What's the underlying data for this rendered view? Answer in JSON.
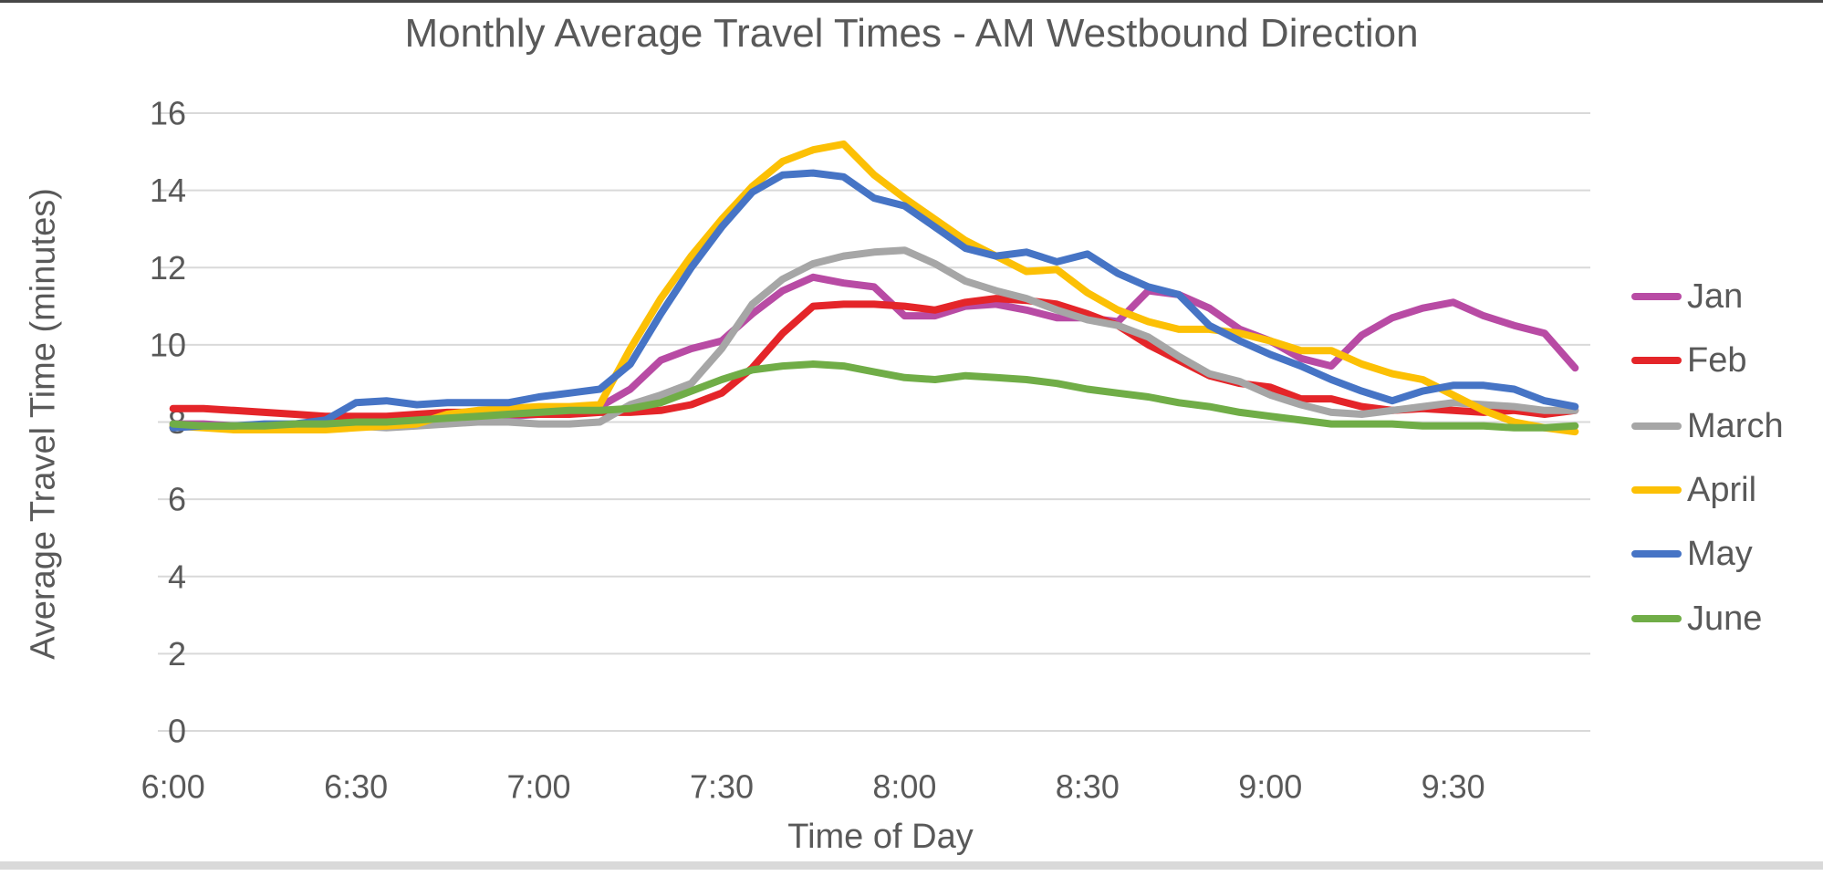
{
  "title": "Monthly Average Travel Times - AM Westbound Direction",
  "axes": {
    "y_title": "Average Travel Time (minutes)",
    "x_title": "Time of Day",
    "y_ticks": [
      0,
      2,
      4,
      6,
      8,
      10,
      12,
      14,
      16
    ],
    "x_ticks": [
      "6:00",
      "6:30",
      "7:00",
      "7:30",
      "8:00",
      "8:30",
      "9:00",
      "9:30"
    ],
    "text_color": "#595959",
    "gridline_color": "#d9d9d9"
  },
  "window": {
    "top_border_color": "#474747",
    "bottom_bar_color": "#d9d9d9",
    "background_color": "#ffffff"
  },
  "legend": {
    "items": [
      {
        "label": "Jan",
        "color": "#b84ba4"
      },
      {
        "label": "Feb",
        "color": "#e42529"
      },
      {
        "label": "March",
        "color": "#a6a6a6"
      },
      {
        "label": "April",
        "color": "#fcc005"
      },
      {
        "label": "May",
        "color": "#4674c5"
      },
      {
        "label": "June",
        "color": "#70ad47"
      }
    ]
  },
  "chart_data": {
    "type": "line",
    "title": "Monthly Average Travel Times - AM Westbound Direction",
    "xlabel": "Time of Day",
    "ylabel": "Average Travel Time (minutes)",
    "ylim": [
      0,
      16
    ],
    "y_tick_step": 2,
    "grid": "horizontal",
    "legend_position": "right",
    "x_interval_minutes": 5,
    "x": [
      "6:00",
      "6:05",
      "6:10",
      "6:15",
      "6:20",
      "6:25",
      "6:30",
      "6:35",
      "6:40",
      "6:45",
      "6:50",
      "6:55",
      "7:00",
      "7:05",
      "7:10",
      "7:15",
      "7:20",
      "7:25",
      "7:30",
      "7:35",
      "7:40",
      "7:45",
      "7:50",
      "7:55",
      "8:00",
      "8:05",
      "8:10",
      "8:15",
      "8:20",
      "8:25",
      "8:30",
      "8:35",
      "8:40",
      "8:45",
      "8:50",
      "8:55",
      "9:00",
      "9:05",
      "9:10",
      "9:15",
      "9:20",
      "9:25",
      "9:30",
      "9:35",
      "9:40",
      "9:45",
      "9:50"
    ],
    "series": [
      {
        "name": "Jan",
        "color": "#b84ba4",
        "values": [
          7.95,
          7.95,
          7.9,
          7.9,
          7.95,
          8.0,
          8.0,
          8.05,
          8.1,
          8.1,
          8.15,
          8.15,
          8.2,
          8.25,
          8.4,
          8.85,
          9.6,
          9.9,
          10.1,
          10.8,
          11.4,
          11.75,
          11.6,
          11.5,
          10.75,
          10.75,
          11.0,
          11.05,
          10.9,
          10.7,
          10.7,
          10.6,
          11.4,
          11.3,
          10.95,
          10.4,
          10.1,
          9.65,
          9.45,
          10.25,
          10.7,
          10.95,
          11.1,
          10.75,
          10.5,
          10.3,
          9.4
        ]
      },
      {
        "name": "Feb",
        "color": "#e42529",
        "values": [
          8.35,
          8.35,
          8.3,
          8.25,
          8.2,
          8.15,
          8.15,
          8.15,
          8.2,
          8.25,
          8.25,
          8.2,
          8.2,
          8.2,
          8.25,
          8.25,
          8.3,
          8.45,
          8.75,
          9.4,
          10.3,
          11.0,
          11.05,
          11.05,
          11.0,
          10.9,
          11.1,
          11.2,
          11.15,
          11.05,
          10.8,
          10.5,
          10.0,
          9.6,
          9.2,
          9.0,
          8.9,
          8.6,
          8.6,
          8.4,
          8.3,
          8.35,
          8.3,
          8.25,
          8.3,
          8.2,
          8.3
        ]
      },
      {
        "name": "March",
        "color": "#a6a6a6",
        "values": [
          7.9,
          7.9,
          7.85,
          7.85,
          7.9,
          7.9,
          7.9,
          7.85,
          7.9,
          7.95,
          8.0,
          8.0,
          7.95,
          7.95,
          8.0,
          8.45,
          8.7,
          9.0,
          9.9,
          11.05,
          11.7,
          12.1,
          12.3,
          12.4,
          12.45,
          12.1,
          11.65,
          11.4,
          11.2,
          10.9,
          10.65,
          10.5,
          10.2,
          9.7,
          9.25,
          9.05,
          8.7,
          8.45,
          8.25,
          8.2,
          8.3,
          8.4,
          8.5,
          8.45,
          8.4,
          8.3,
          8.3
        ]
      },
      {
        "name": "April",
        "color": "#fcc005",
        "values": [
          7.9,
          7.85,
          7.8,
          7.8,
          7.8,
          7.8,
          7.85,
          7.9,
          7.95,
          8.2,
          8.3,
          8.35,
          8.4,
          8.4,
          8.45,
          9.9,
          11.2,
          12.3,
          13.25,
          14.1,
          14.75,
          15.05,
          15.2,
          14.4,
          13.8,
          13.25,
          12.7,
          12.3,
          11.9,
          11.95,
          11.35,
          10.9,
          10.6,
          10.4,
          10.4,
          10.3,
          10.1,
          9.85,
          9.85,
          9.5,
          9.25,
          9.1,
          8.7,
          8.3,
          8.0,
          7.85,
          7.75
        ]
      },
      {
        "name": "May",
        "color": "#4674c5",
        "values": [
          7.85,
          7.9,
          7.9,
          7.95,
          7.95,
          8.05,
          8.5,
          8.55,
          8.45,
          8.5,
          8.5,
          8.5,
          8.65,
          8.75,
          8.85,
          9.5,
          10.8,
          12.0,
          13.05,
          13.95,
          14.4,
          14.45,
          14.35,
          13.8,
          13.6,
          13.05,
          12.5,
          12.3,
          12.4,
          12.15,
          12.35,
          11.85,
          11.5,
          11.3,
          10.5,
          10.1,
          9.75,
          9.45,
          9.1,
          8.8,
          8.55,
          8.8,
          8.95,
          8.95,
          8.85,
          8.55,
          8.4
        ]
      },
      {
        "name": "June",
        "color": "#70ad47",
        "values": [
          7.95,
          7.9,
          7.9,
          7.9,
          7.95,
          7.95,
          8.0,
          8.0,
          8.05,
          8.1,
          8.15,
          8.2,
          8.25,
          8.3,
          8.3,
          8.35,
          8.5,
          8.8,
          9.1,
          9.35,
          9.45,
          9.5,
          9.45,
          9.3,
          9.15,
          9.1,
          9.2,
          9.15,
          9.1,
          9.0,
          8.85,
          8.75,
          8.65,
          8.5,
          8.4,
          8.25,
          8.15,
          8.05,
          7.95,
          7.95,
          7.95,
          7.9,
          7.9,
          7.9,
          7.85,
          7.85,
          7.9
        ]
      }
    ]
  }
}
